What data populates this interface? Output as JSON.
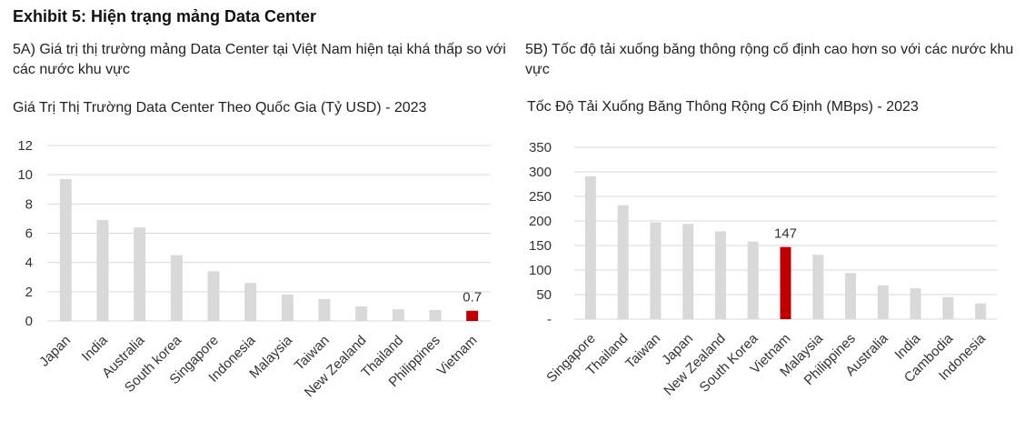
{
  "exhibit_title": "Exhibit 5: Hiện trạng mảng Data Center",
  "panels": {
    "a": {
      "subtitle": "5A) Giá trị thị trường mảng Data Center tại Việt Nam hiện tại khá thấp so với các nước khu vực",
      "chart_title": "Giá Trị Thị Trường Data Center Theo Quốc Gia (Tỷ USD) - 2023"
    },
    "b": {
      "subtitle": "5B) Tốc độ tải xuống băng thông rộng cố định cao hơn so với các nước khu vực",
      "chart_title": "Tốc Độ Tải Xuống Băng Thông Rộng Cố Định (MBps) - 2023"
    }
  },
  "chart_data": [
    {
      "type": "bar",
      "title": "Giá Trị Thị Trường Data Center Theo Quốc Gia (Tỷ USD) - 2023",
      "categories": [
        "Japan",
        "India",
        "Australia",
        "South korea",
        "Singapore",
        "Indonesia",
        "Malaysia",
        "Taiwan",
        "New Zealand",
        "Thailand",
        "Philippines",
        "Vietnam"
      ],
      "values": [
        9.7,
        6.9,
        6.4,
        4.5,
        3.4,
        2.6,
        1.8,
        1.5,
        1.0,
        0.8,
        0.75,
        0.7
      ],
      "ylim": [
        0,
        12
      ],
      "yticks": [
        "0",
        "2",
        "4",
        "6",
        "8",
        "10",
        "12"
      ],
      "ytick_values": [
        0,
        2,
        4,
        6,
        8,
        10,
        12
      ],
      "highlight": "Vietnam",
      "data_labels": [
        {
          "category": "Vietnam",
          "text": "0.7"
        }
      ],
      "colors": {
        "bar": "#d9d9d9",
        "highlight": "#c00000",
        "grid": "#d9d9d9"
      },
      "grid": true
    },
    {
      "type": "bar",
      "title": "Tốc Độ Tải Xuống Băng Thông Rộng Cố Định (MBps) - 2023",
      "categories": [
        "Singapore",
        "Thailand",
        "Taiwan",
        "Japan",
        "New Zealand",
        "South Korea",
        "Vietnam",
        "Malaysia",
        "Philippines",
        "Australia",
        "India",
        "Cambodia",
        "Indonesia"
      ],
      "values": [
        291,
        232,
        197,
        194,
        179,
        158,
        147,
        131,
        94,
        69,
        63,
        45,
        32
      ],
      "ylim": [
        0,
        350
      ],
      "yticks": [
        "-",
        "50",
        "100",
        "150",
        "200",
        "250",
        "300",
        "350"
      ],
      "ytick_values": [
        0,
        50,
        100,
        150,
        200,
        250,
        300,
        350
      ],
      "highlight": "Vietnam",
      "data_labels": [
        {
          "category": "Vietnam",
          "text": "147"
        }
      ],
      "colors": {
        "bar": "#d9d9d9",
        "highlight": "#c00000",
        "grid": "#d9d9d9"
      },
      "grid": true
    }
  ]
}
